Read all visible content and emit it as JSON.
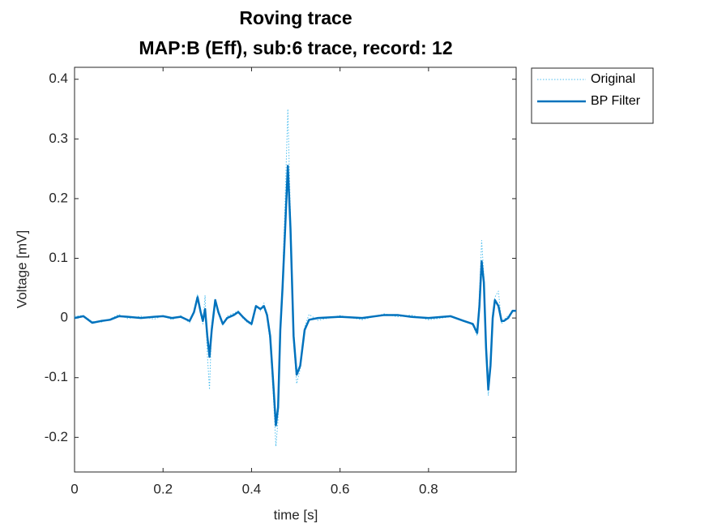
{
  "chart_data": {
    "type": "line",
    "title": [
      "Roving trace",
      "MAP:B (Eff), sub:6 trace, record: 12"
    ],
    "x_label": "time [s]",
    "y_label": "Voltage [mV]",
    "x": [
      0,
      0.02,
      0.04,
      0.06,
      0.08,
      0.1,
      0.12,
      0.15,
      0.18,
      0.2,
      0.22,
      0.24,
      0.26,
      0.27,
      0.278,
      0.285,
      0.29,
      0.295,
      0.3,
      0.305,
      0.31,
      0.318,
      0.325,
      0.335,
      0.345,
      0.36,
      0.37,
      0.38,
      0.39,
      0.4,
      0.41,
      0.42,
      0.428,
      0.435,
      0.442,
      0.45,
      0.455,
      0.46,
      0.465,
      0.47,
      0.476,
      0.482,
      0.488,
      0.495,
      0.502,
      0.51,
      0.52,
      0.53,
      0.55,
      0.6,
      0.65,
      0.7,
      0.73,
      0.76,
      0.8,
      0.85,
      0.88,
      0.9,
      0.91,
      0.915,
      0.92,
      0.925,
      0.93,
      0.935,
      0.94,
      0.945,
      0.95,
      0.958,
      0.965,
      0.97,
      0.98,
      0.99,
      0.998
    ],
    "series": [
      {
        "name": "Original",
        "color": "#4dbeee",
        "style": "dotted",
        "width": 1,
        "values": [
          0.003,
          0.004,
          -0.006,
          -0.007,
          -0.002,
          0.006,
          -0.001,
          0.003,
          -0.002,
          0.004,
          -0.003,
          0.004,
          -0.008,
          0.012,
          0.04,
          0.005,
          -0.01,
          0.038,
          -0.06,
          -0.12,
          -0.01,
          0.032,
          0.012,
          -0.012,
          0.003,
          0.008,
          0.012,
          0,
          -0.007,
          -0.012,
          0.022,
          0.012,
          0.025,
          0.002,
          -0.04,
          -0.14,
          -0.215,
          -0.17,
          -0.01,
          0.06,
          0.2,
          0.35,
          0.17,
          -0.04,
          -0.11,
          -0.085,
          -0.015,
          0.006,
          -0.004,
          0.004,
          -0.003,
          0.007,
          0.002,
          0.005,
          -0.003,
          0.002,
          -0.004,
          -0.012,
          -0.03,
          0.04,
          0.13,
          0.07,
          -0.06,
          -0.13,
          -0.085,
          0.01,
          0.035,
          0.045,
          -0.01,
          -0.003,
          0.004,
          0.01,
          0.013
        ]
      },
      {
        "name": "BP Filter",
        "color": "#0072bd",
        "style": "solid",
        "width": 2.5,
        "values": [
          0,
          0.003,
          -0.008,
          -0.005,
          -0.003,
          0.003,
          0.002,
          0,
          0.002,
          0.003,
          0,
          0.002,
          -0.005,
          0.01,
          0.035,
          0.01,
          -0.005,
          0.015,
          -0.03,
          -0.065,
          -0.02,
          0.03,
          0.01,
          -0.01,
          0,
          0.005,
          0.01,
          0.002,
          -0.005,
          -0.01,
          0.02,
          0.015,
          0.02,
          0.005,
          -0.03,
          -0.12,
          -0.18,
          -0.15,
          -0.02,
          0.05,
          0.15,
          0.255,
          0.15,
          -0.03,
          -0.095,
          -0.08,
          -0.02,
          -0.003,
          0,
          0.002,
          0,
          0.005,
          0.005,
          0.002,
          0,
          0.003,
          -0.005,
          -0.01,
          -0.025,
          0.02,
          0.095,
          0.06,
          -0.05,
          -0.12,
          -0.08,
          0,
          0.03,
          0.02,
          -0.005,
          -0.005,
          0,
          0.012,
          0.012
        ]
      }
    ],
    "xlim": [
      0,
      0.998
    ],
    "ylim": [
      -0.258,
      0.42
    ],
    "xticks": [
      0,
      0.2,
      0.4,
      0.6,
      0.8
    ],
    "yticks": [
      -0.2,
      -0.1,
      0,
      0.1,
      0.2,
      0.3,
      0.4
    ],
    "grid": false,
    "legend": "outside-northeast"
  }
}
